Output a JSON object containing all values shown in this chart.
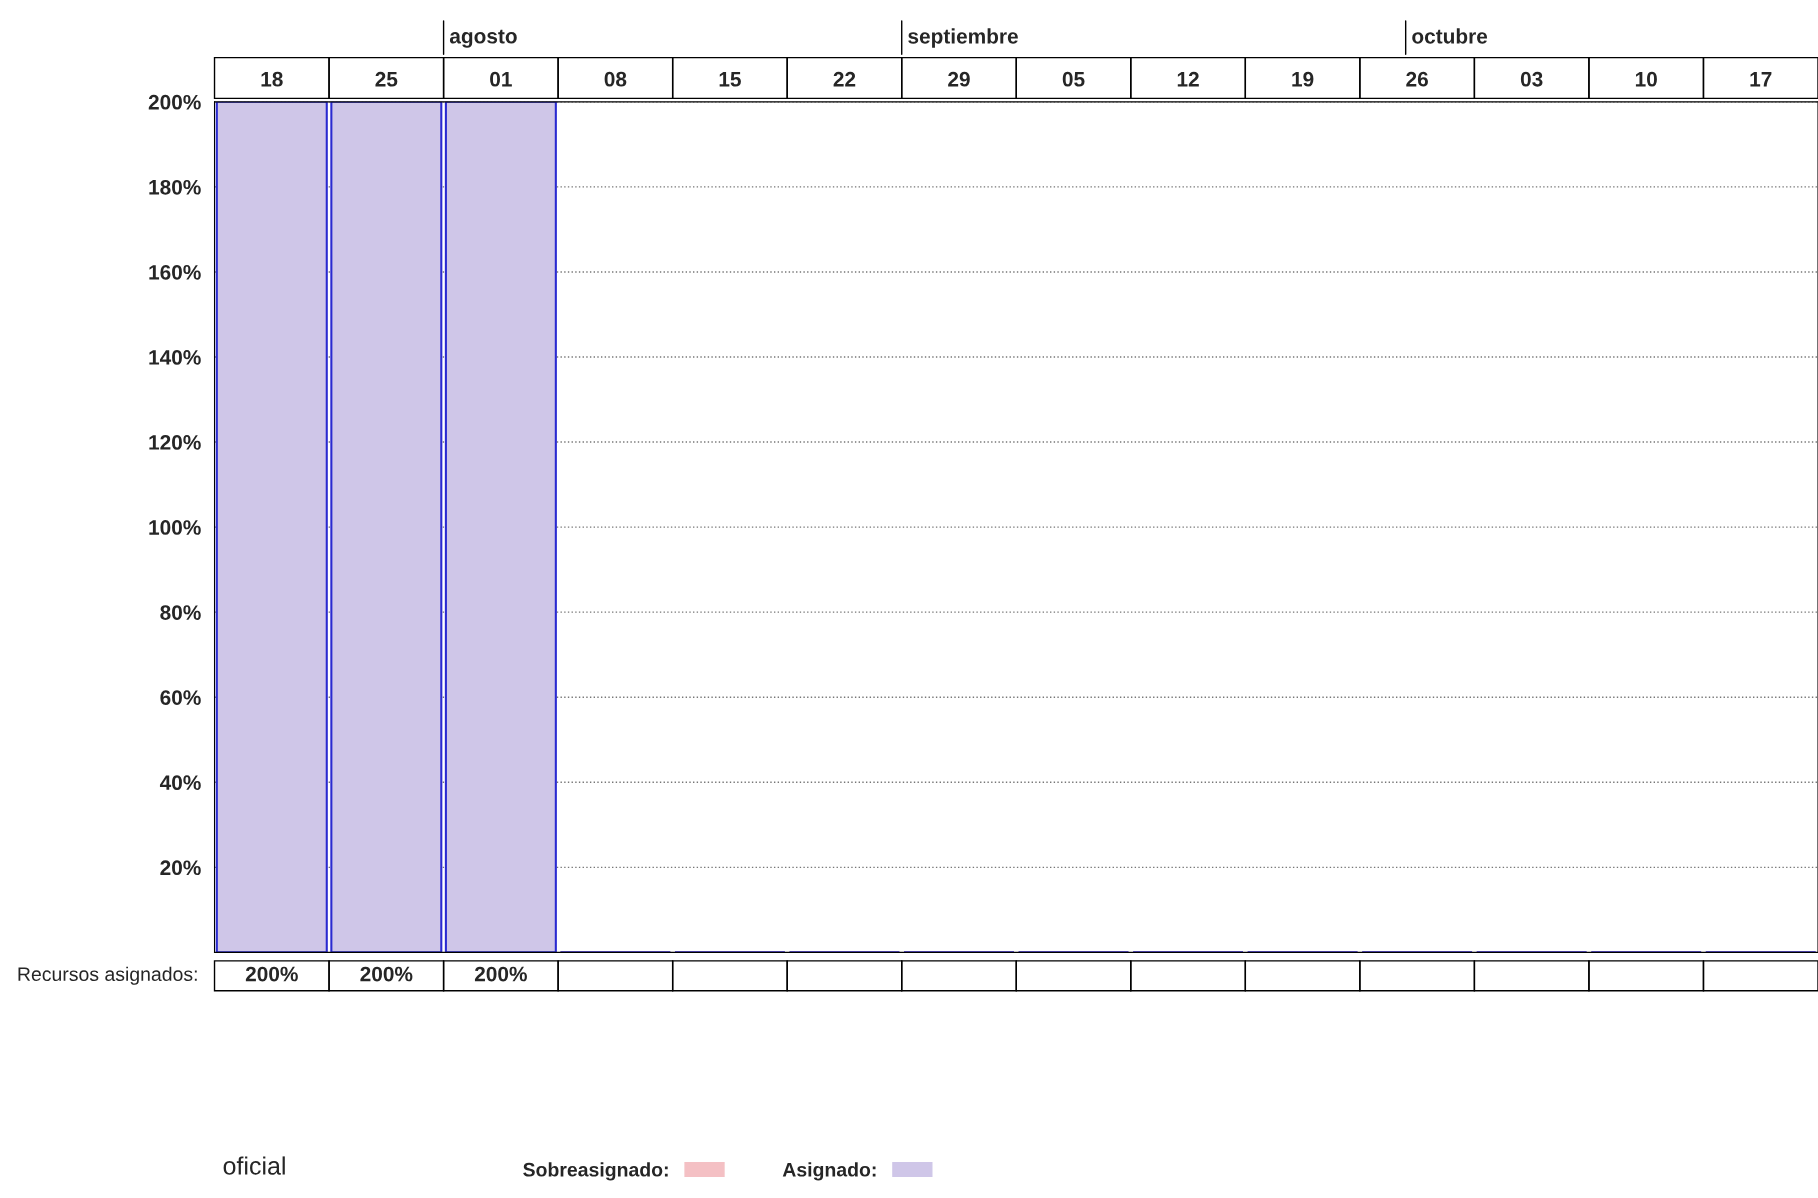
{
  "chart_data": {
    "type": "bar",
    "categories": [
      "18",
      "25",
      "01",
      "08",
      "15",
      "22",
      "29",
      "05",
      "12",
      "19",
      "26",
      "03",
      "10",
      "17"
    ],
    "series": [
      {
        "name": "Sobreasignado:",
        "color": "#f4c0c4",
        "values": [
          0,
          0,
          0,
          0,
          0,
          0,
          0,
          0,
          0,
          0,
          0,
          0,
          0,
          0
        ]
      },
      {
        "name": "Asignado:",
        "color": "#cfc6e8",
        "values": [
          200,
          200,
          200,
          0,
          0,
          0,
          0,
          0,
          0,
          0,
          0,
          0,
          0,
          0
        ]
      }
    ],
    "value_labels": [
      "200%",
      "200%",
      "200%",
      null,
      null,
      null,
      null,
      null,
      null,
      null,
      null,
      null,
      null,
      null
    ],
    "ylim": [
      0,
      200
    ],
    "yticks": [
      {
        "value": 20,
        "label": "20%"
      },
      {
        "value": 40,
        "label": "40%"
      },
      {
        "value": 60,
        "label": "60%"
      },
      {
        "value": 80,
        "label": "80%"
      },
      {
        "value": 100,
        "label": "100%"
      },
      {
        "value": 120,
        "label": "120%"
      },
      {
        "value": 140,
        "label": "140%"
      },
      {
        "value": 160,
        "label": "160%"
      },
      {
        "value": 180,
        "label": "180%"
      },
      {
        "value": 200,
        "label": "200%"
      }
    ],
    "grid": "y",
    "legend": "bottom",
    "annotations": [
      "agosto",
      "septiembre",
      "octubre",
      "Recursos asignados:",
      "oficial"
    ]
  }
}
